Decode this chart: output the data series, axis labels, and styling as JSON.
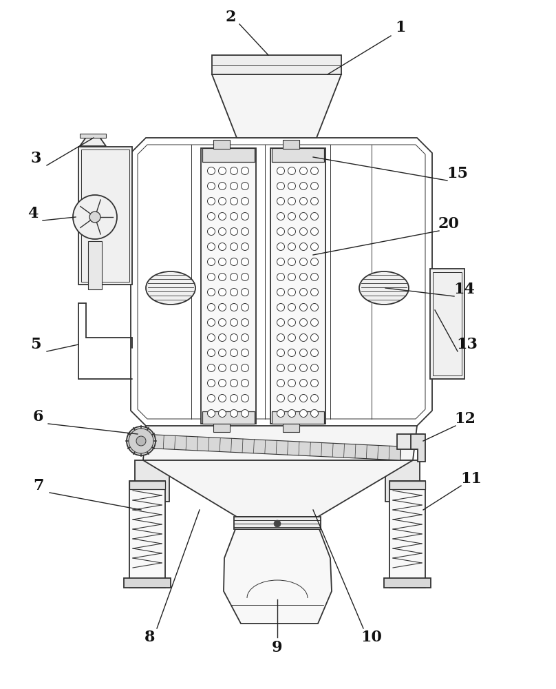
{
  "bg_color": "#ffffff",
  "lc": "#333333",
  "lw": 1.3,
  "fill_main": "#ffffff",
  "fill_light": "#f5f5f5",
  "fill_medium": "#eeeeee",
  "fill_dark": "#dddddd"
}
